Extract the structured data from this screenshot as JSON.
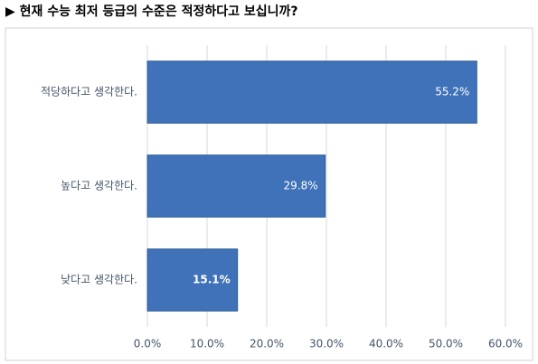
{
  "chart_data": {
    "type": "hbar",
    "title": "▶ 현재 수능 최저 등급의 수준은 적정하다고 보십니까?",
    "categories": [
      "적당하다고 생각한다.",
      "높다고 생각한다.",
      "낮다고 생각한다."
    ],
    "values": [
      55.2,
      29.8,
      15.1
    ],
    "value_labels": [
      "55.2%",
      "29.8%",
      "15.1%"
    ],
    "color": "#3f72b8",
    "xlim": [
      0,
      60
    ],
    "xticks": [
      {
        "value": 0,
        "label": "0.0%"
      },
      {
        "value": 10,
        "label": "10.0%"
      },
      {
        "value": 20,
        "label": "20.0%"
      },
      {
        "value": 30,
        "label": "30.0%"
      },
      {
        "value": 40,
        "label": "40.0%"
      },
      {
        "value": 50,
        "label": "50.0%"
      },
      {
        "value": 60,
        "label": "60.0%"
      }
    ],
    "grid": true
  }
}
